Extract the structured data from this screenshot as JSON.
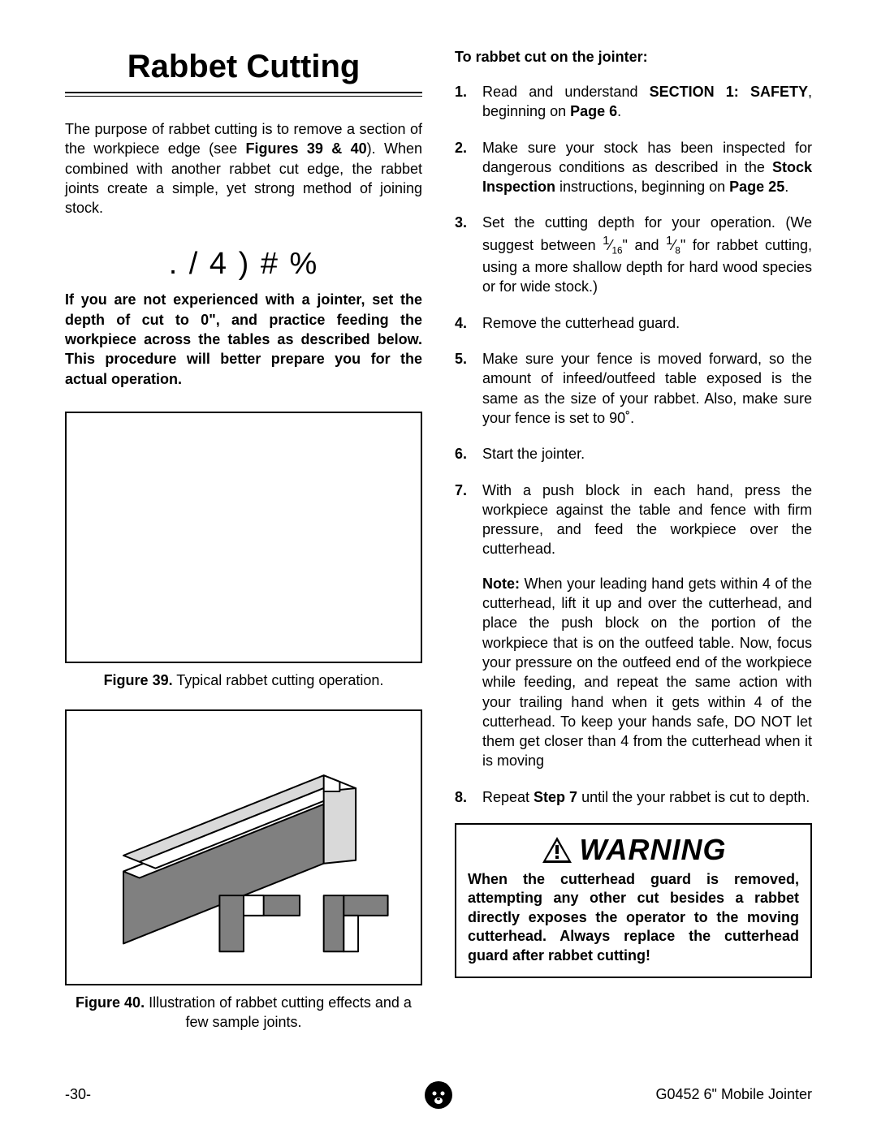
{
  "title": "Rabbet Cutting",
  "intro_html": "The purpose of rabbet cutting is to remove a section of the workpiece edge (see <b>Figures 39 & 40</b>). When combined with another rabbet cut edge, the rabbet joints create a simple, yet strong method of joining stock.",
  "notice": {
    "head": ". / 4 ) # %",
    "body": "If you are not experienced with a jointer, set the depth of cut to 0\", and practice feeding the workpiece across the tables as described below. This procedure will better prepare you for the actual operation."
  },
  "figures": {
    "f39_caption_html": "<b>Figure 39.</b> Typical rabbet cutting operation.",
    "f40_caption_html": "<b>Figure 40.</b> Illustration of rabbet cutting effects and a few sample joints."
  },
  "right_head": "To rabbet cut on the jointer:",
  "steps": [
    "Read and understand <b>SECTION 1: SAFETY</b>, beginning on <b>Page 6</b>.",
    "Make sure your stock has been inspected for dangerous conditions as described in the <b>Stock Inspection</b> instructions, beginning on <b>Page 25</b>.",
    "Set the cutting depth for your operation. (We suggest between <sup>1</sup>⁄<sub>16</sub>\" and <sup>1</sup>⁄<sub>8</sub>\" for rabbet cutting, using a more shallow depth for hard wood species or for wide stock.)",
    "Remove the cutterhead guard.",
    "Make sure your fence is moved forward, so the amount of infeed/outfeed table exposed is the same as the size of your rabbet. Also, make sure your fence is set to 90˚.",
    "Start the jointer.",
    "With a push block in each hand, press the workpiece against the table and fence with firm pressure, and feed the workpiece over the cutterhead.<div class=\"note-block\"><b>Note:</b> When your leading hand gets within 4  of the cutterhead, lift it up and over the cutterhead, and place the push block on the portion of the workpiece that is on the outfeed table. Now, focus your pressure on the outfeed end of the workpiece while feeding, and repeat the same action with your trailing hand when it gets within 4  of the cutterhead. To keep your hands safe, DO NOT let them get closer than 4  from the cutterhead when it is moving</div>",
    "Repeat <b>Step 7</b> until the your rabbet is cut to depth."
  ],
  "warning": {
    "head": "WARNING",
    "body": "When the cutterhead guard is removed, attempting any other cut besides a rabbet directly exposes the operator to the moving cutterhead. Always replace the cutterhead guard after rabbet cutting!"
  },
  "footer": {
    "page": "-30-",
    "model": "G0452 6\" Mobile Jointer"
  },
  "colors": {
    "text": "#000000",
    "bg": "#ffffff",
    "fill_gray": "#808080",
    "fill_light": "#d9d9d9"
  }
}
